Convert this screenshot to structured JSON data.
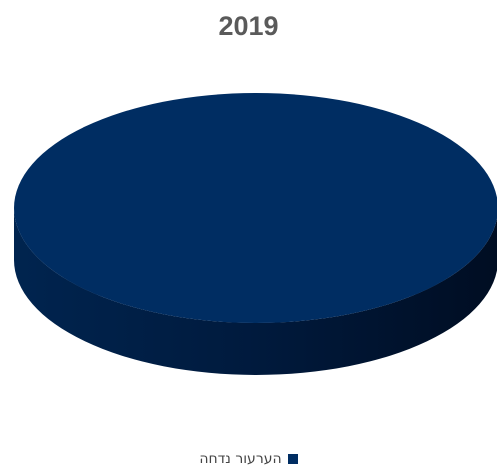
{
  "chart_data": {
    "type": "pie",
    "title": "2019",
    "categories": [
      "הערעור נדחה"
    ],
    "values": [
      100
    ],
    "series": [
      {
        "name": "הערעור נדחה",
        "values": [
          100
        ],
        "color": "#002d62"
      }
    ],
    "legend_position": "bottom",
    "style": "3d"
  },
  "colors": {
    "slice_top": "#002d62",
    "slice_side": "#001c40",
    "title_text": "#5a5a5a",
    "legend_text": "#444444"
  }
}
